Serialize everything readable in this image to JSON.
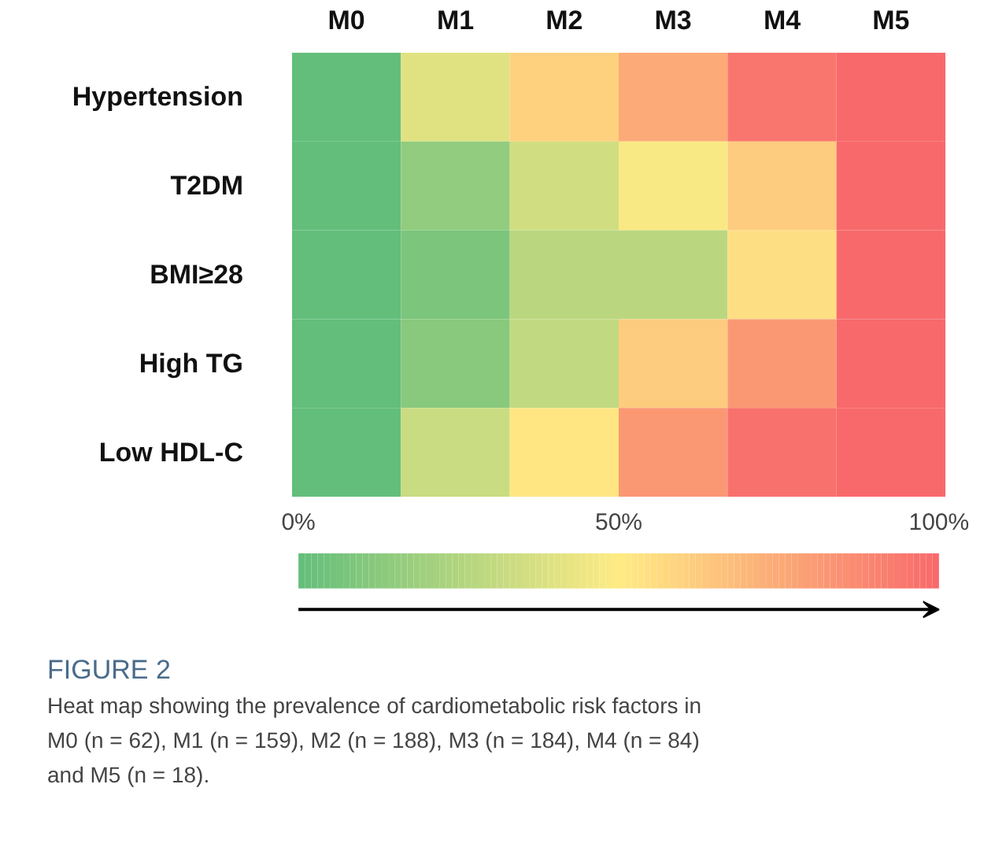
{
  "chart_data": {
    "type": "heatmap",
    "categories": [
      "M0",
      "M1",
      "M2",
      "M3",
      "M4",
      "M5"
    ],
    "y_categories": [
      "Hypertension",
      "T2DM",
      "BMI≥28",
      "High TG",
      "Low HDL-C"
    ],
    "cells": [
      [
        0,
        40,
        60,
        75,
        95,
        100
      ],
      [
        0,
        15,
        35,
        48,
        62,
        100
      ],
      [
        0,
        8,
        28,
        28,
        55,
        100
      ],
      [
        0,
        12,
        30,
        62,
        82,
        100
      ],
      [
        0,
        33,
        52,
        82,
        97,
        100
      ]
    ],
    "clim": [
      0,
      100
    ],
    "cticks": [
      {
        "value": 0,
        "label": "0%"
      },
      {
        "value": 50,
        "label": "50%"
      },
      {
        "value": 100,
        "label": "100%"
      }
    ],
    "annotations": [
      "FIGURE 2",
      "Heat map showing the prevalence of cardiometabolic risk factors in M0 (n = 62), M1 (n = 159), M2 (n = 188), M3 (n = 184), M4 (n = 84) and M5 (n = 18)."
    ]
  }
}
